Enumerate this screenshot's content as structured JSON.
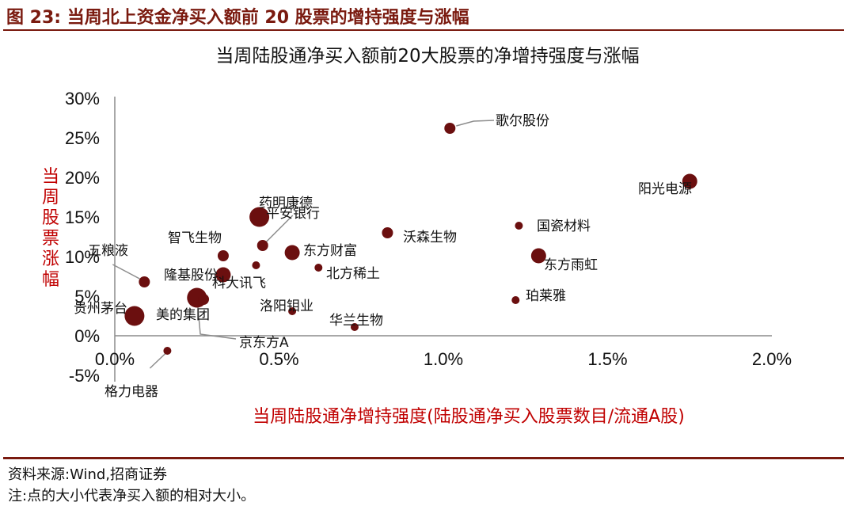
{
  "figure_title": "图 23:  当周北上资金净买入额前 20 股票的增持强度与涨幅",
  "source": "资料来源:Wind,招商证券",
  "note": "注:点的大小代表净买入额的相对大小。",
  "colors": {
    "accent": "#7a1a0f",
    "dot": "#6b0f0f",
    "axis_label": "#c00000"
  },
  "chart_data": {
    "type": "scatter",
    "title": "当周陆股通净买入额前20大股票的净增持强度与涨幅",
    "xlabel": "当周陆股通净增持强度(陆股通净买入股票数目/流通A股)",
    "ylabel": "当周股票涨幅",
    "xlim": [
      0,
      2.0
    ],
    "ylim": [
      -5,
      30
    ],
    "x_unit": "%",
    "y_unit": "%",
    "xticks": [
      "0.0%",
      "0.5%",
      "1.0%",
      "1.5%",
      "2.0%"
    ],
    "yticks": [
      "-5%",
      "0%",
      "5%",
      "10%",
      "15%",
      "20%",
      "25%",
      "30%"
    ],
    "grid": false,
    "points": [
      {
        "name": "歌尔股份",
        "x": 1.02,
        "y": 26.2,
        "size": 2
      },
      {
        "name": "阳光电源",
        "x": 1.75,
        "y": 19.5,
        "size": 3
      },
      {
        "name": "国瓷材料",
        "x": 1.23,
        "y": 13.9,
        "size": 1
      },
      {
        "name": "东方雨虹",
        "x": 1.29,
        "y": 10.1,
        "size": 3
      },
      {
        "name": "珀莱雅",
        "x": 1.22,
        "y": 4.5,
        "size": 1
      },
      {
        "name": "沃森生物",
        "x": 0.83,
        "y": 13.0,
        "size": 2
      },
      {
        "name": "药明康德",
        "x": 0.44,
        "y": 15.0,
        "size": 4
      },
      {
        "name": "平安银行",
        "x": 0.45,
        "y": 11.4,
        "size": 2
      },
      {
        "name": "东方财富",
        "x": 0.54,
        "y": 10.5,
        "size": 3
      },
      {
        "name": "北方稀土",
        "x": 0.62,
        "y": 8.6,
        "size": 1
      },
      {
        "name": "科大讯飞",
        "x": 0.43,
        "y": 8.9,
        "size": 1
      },
      {
        "name": "智飞生物",
        "x": 0.33,
        "y": 10.1,
        "size": 2
      },
      {
        "name": "隆基股份",
        "x": 0.33,
        "y": 7.7,
        "size": 3
      },
      {
        "name": "五粮液",
        "x": 0.09,
        "y": 6.8,
        "size": 2
      },
      {
        "name": "美的集团",
        "x": 0.25,
        "y": 4.8,
        "size": 4
      },
      {
        "name": "京东方A",
        "x": 0.27,
        "y": 4.6,
        "size": 2
      },
      {
        "name": "贵州茅台",
        "x": 0.06,
        "y": 2.5,
        "size": 4
      },
      {
        "name": "洛阳钼业",
        "x": 0.54,
        "y": 3.1,
        "size": 1
      },
      {
        "name": "华兰生物",
        "x": 0.73,
        "y": 1.1,
        "size": 1
      },
      {
        "name": "格力电器",
        "x": 0.16,
        "y": -1.9,
        "size": 1
      }
    ]
  }
}
